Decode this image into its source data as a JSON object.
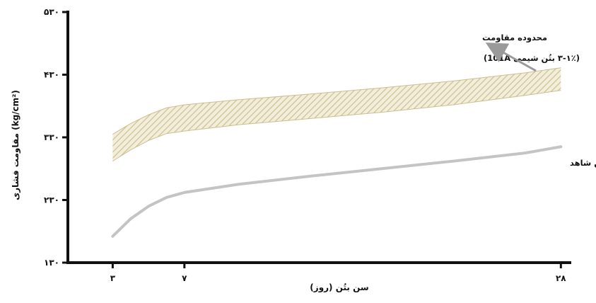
{
  "chart_data": {
    "type": "area",
    "title": "",
    "xlabel": "سن بتُن (روز)",
    "ylabel": "مقاومت فشاری (kg/cm²)",
    "xlim": [
      0.5,
      28.5
    ],
    "ylim": [
      130,
      530
    ],
    "x_ticks": [
      {
        "value": 3,
        "label": "۳"
      },
      {
        "value": 7,
        "label": "۷"
      },
      {
        "value": 28,
        "label": "۲۸"
      }
    ],
    "y_ticks": [
      {
        "value": 130,
        "label": "۱۳۰"
      },
      {
        "value": 230,
        "label": "۲۳۰"
      },
      {
        "value": 330,
        "label": "۳۳۰"
      },
      {
        "value": 430,
        "label": "۴۳۰"
      },
      {
        "value": 530,
        "label": "۵۳۰"
      }
    ],
    "grid": false,
    "series": [
      {
        "name": "محدوده مقاومت",
        "kind": "band",
        "color": "#cbbf8f",
        "x": [
          3,
          4,
          5,
          6,
          7,
          10,
          14,
          18,
          22,
          26,
          28
        ],
        "lower": [
          292,
          310,
          325,
          336,
          340,
          350,
          360,
          370,
          382,
          397,
          405
        ],
        "upper": [
          335,
          352,
          366,
          377,
          382,
          390,
          399,
          409,
          420,
          433,
          441
        ]
      },
      {
        "name": "بتُن شاهد",
        "kind": "line",
        "color": "#c4c4c4",
        "x": [
          3,
          4,
          5,
          6,
          7,
          10,
          14,
          18,
          22,
          26,
          28
        ],
        "values": [
          172,
          200,
          220,
          234,
          242,
          255,
          268,
          280,
          292,
          305,
          315
        ]
      }
    ],
    "annotations": {
      "range_line1": "محدوده مقاومت",
      "range_line2": "(۳-۱٪ بتُن شیمی 101A)",
      "control_label": "بتُن شاهد"
    },
    "arrow_color": "#9a9a9a"
  }
}
